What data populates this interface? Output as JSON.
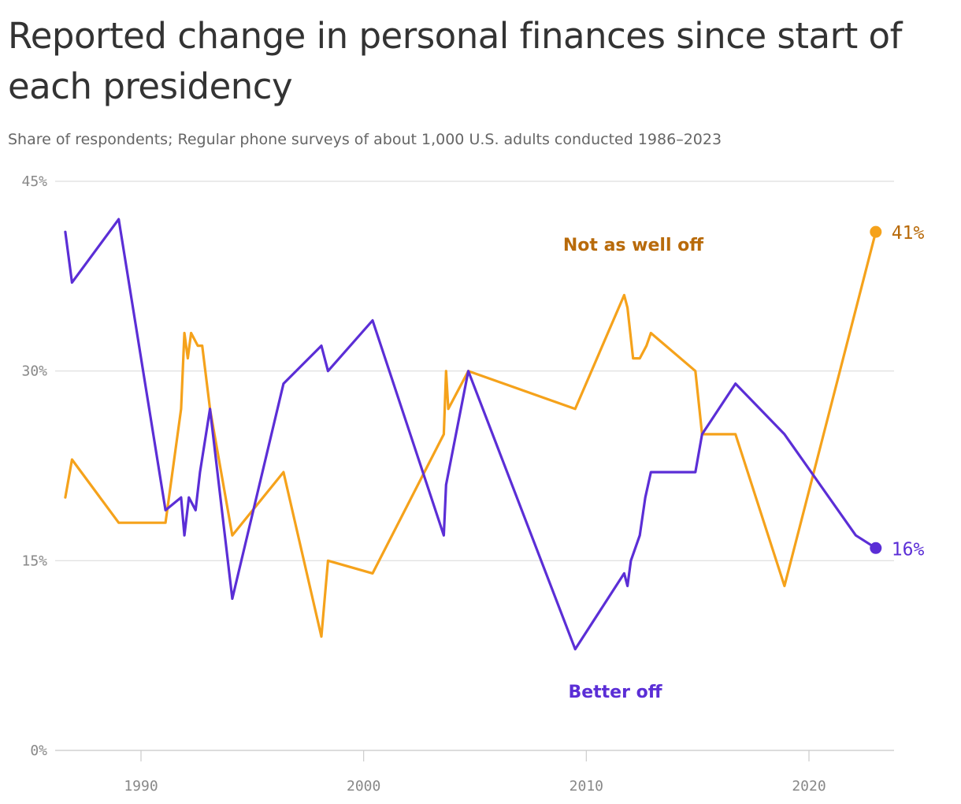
{
  "chart_data": {
    "type": "line",
    "title": "Reported change in personal finances since start of each presidency",
    "subtitle": "Share of respondents; Regular phone surveys of about 1,000 U.S. adults conducted 1986–2023",
    "x_ticks": [
      1990,
      2000,
      2010,
      2020
    ],
    "x_tick_labels": [
      "1990",
      "2000",
      "2010",
      "2020"
    ],
    "xlim": [
      1986.0,
      2023.0
    ],
    "y_ticks": [
      0,
      15,
      30,
      45
    ],
    "y_tick_labels": [
      "0%",
      "15%",
      "30%",
      "45%"
    ],
    "ylim": [
      0,
      45
    ],
    "grid": true,
    "series": [
      {
        "name": "Not as well off",
        "color": "#F5A21B",
        "end_color": "#B86A0A",
        "end_label": "41%",
        "x": [
          1986.6,
          1986.9,
          1989.0,
          1991.1,
          1991.8,
          1991.95,
          1992.1,
          1992.25,
          1992.55,
          1992.75,
          1993.1,
          1994.1,
          1996.4,
          1998.1,
          1998.4,
          2000.4,
          2003.6,
          2003.7,
          2003.8,
          2004.7,
          2009.5,
          2011.7,
          2011.85,
          2012.1,
          2012.4,
          2012.7,
          2012.9,
          2014.9,
          2015.2,
          2016.7,
          2018.9,
          2023.0
        ],
        "values": [
          20,
          23,
          18,
          18,
          27,
          33,
          31,
          33,
          32,
          32,
          27,
          17,
          22,
          9,
          15,
          14,
          25,
          30,
          27,
          30,
          27,
          36,
          35,
          31,
          31,
          32,
          33,
          30,
          25,
          25,
          13,
          41
        ]
      },
      {
        "name": "Better off",
        "color": "#5B2ED6",
        "end_color": "#5B2ED6",
        "end_label": "16%",
        "x": [
          1986.6,
          1986.9,
          1989.0,
          1991.1,
          1991.8,
          1991.95,
          1992.15,
          1992.45,
          1992.65,
          1993.1,
          1994.1,
          1996.4,
          1998.1,
          1998.4,
          2000.4,
          2003.6,
          2003.7,
          2004.7,
          2009.5,
          2011.7,
          2011.85,
          2012.0,
          2012.4,
          2012.65,
          2012.9,
          2014.9,
          2015.2,
          2016.7,
          2018.9,
          2022.1,
          2023.0
        ],
        "values": [
          41,
          37,
          42,
          19,
          20,
          17,
          20,
          19,
          22,
          27,
          12,
          29,
          32,
          30,
          34,
          17,
          21,
          30,
          8,
          14,
          13,
          15,
          17,
          20,
          22,
          22,
          25,
          29,
          25,
          17,
          16
        ]
      }
    ],
    "annotations": [
      {
        "text": "Not as well off",
        "series": 0
      },
      {
        "text": "Better off",
        "series": 1
      }
    ]
  }
}
